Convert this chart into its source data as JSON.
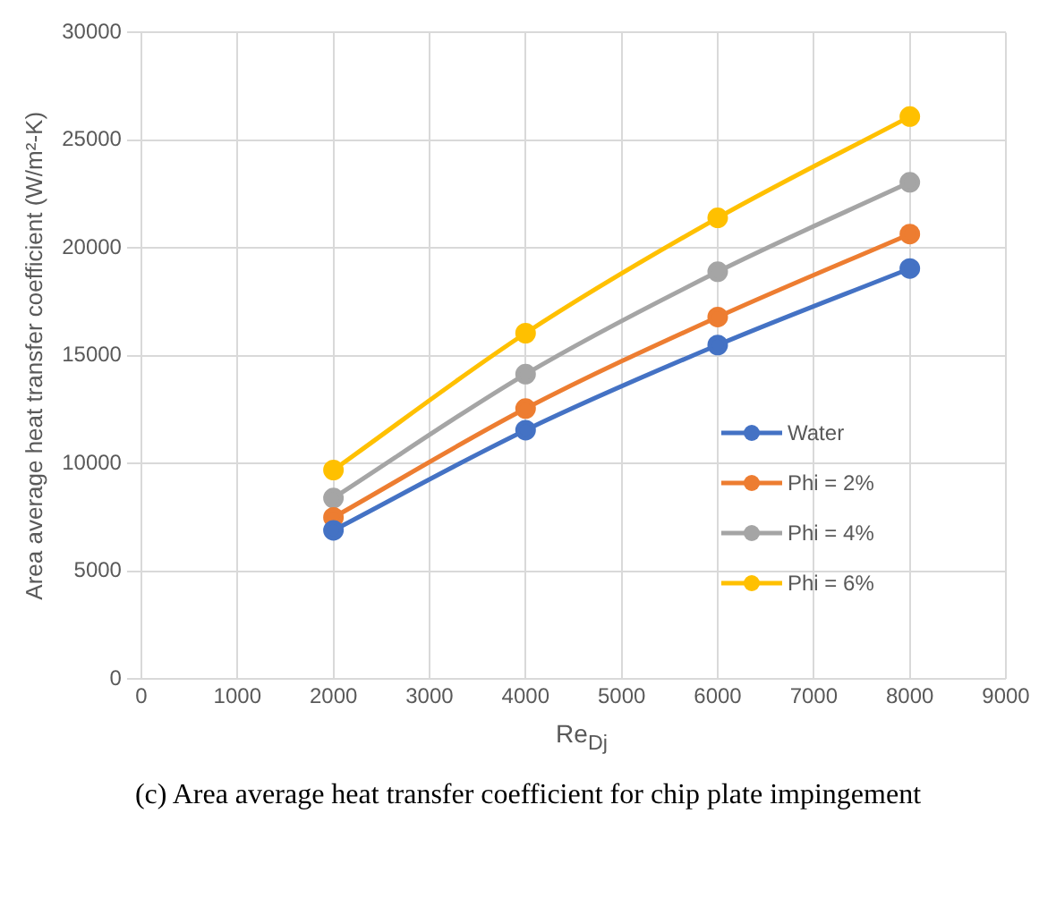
{
  "chart_data": {
    "type": "line",
    "xlabel": "Re$_{Dj}$",
    "ylabel": "Area average heat transfer coefficient (W/m²-K)",
    "annotations": [
      "(c) Area average heat transfer coefficient for chip plate impingement"
    ],
    "x": [
      2000,
      4000,
      6000,
      8000
    ],
    "series": [
      {
        "name": "Water",
        "color": "#4472c4",
        "values": [
          6900,
          11550,
          15500,
          19050
        ]
      },
      {
        "name": "Phi = 2%",
        "color": "#ed7d31",
        "values": [
          7500,
          12550,
          16800,
          20650
        ]
      },
      {
        "name": "Phi = 4%",
        "color": "#a5a5a5",
        "values": [
          8400,
          14150,
          18900,
          23050
        ]
      },
      {
        "name": "Phi = 6%",
        "color": "#ffc000",
        "values": [
          9700,
          16050,
          21400,
          26100
        ]
      }
    ],
    "xlim": [
      0,
      9000
    ],
    "xticks": [
      0,
      1000,
      2000,
      3000,
      4000,
      5000,
      6000,
      7000,
      8000,
      9000
    ],
    "ylim": [
      0,
      30000
    ],
    "yticks": [
      0,
      5000,
      10000,
      15000,
      20000,
      25000,
      30000
    ],
    "grid": true,
    "legend": "right",
    "marker": "circle",
    "line_style": "solid"
  }
}
